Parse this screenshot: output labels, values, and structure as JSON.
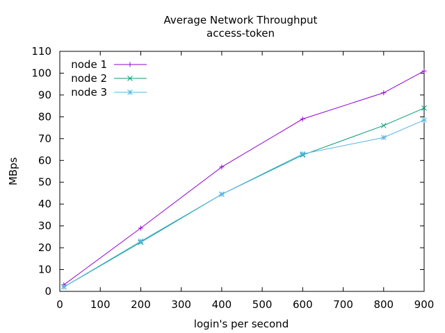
{
  "chart_data": {
    "type": "line",
    "title": "Average Network Throughput",
    "subtitle": "access-token",
    "xlabel": "login's per second",
    "ylabel": "MBps",
    "xlim": [
      0,
      900
    ],
    "ylim": [
      0,
      110
    ],
    "xticks": [
      0,
      100,
      200,
      300,
      400,
      500,
      600,
      700,
      800,
      900
    ],
    "yticks": [
      0,
      10,
      20,
      30,
      40,
      50,
      60,
      70,
      80,
      90,
      100,
      110
    ],
    "grid": false,
    "legend_position": "top-left",
    "series": [
      {
        "name": "node 1",
        "color": "#9400d3",
        "marker": "plus",
        "x": [
          10,
          200,
          400,
          600,
          800,
          900
        ],
        "y": [
          3,
          29,
          57,
          79,
          91,
          101
        ]
      },
      {
        "name": "node 2",
        "color": "#009e73",
        "marker": "cross",
        "x": [
          10,
          200,
          400,
          600,
          800,
          900
        ],
        "y": [
          2,
          22.5,
          44.5,
          62.5,
          76,
          84
        ]
      },
      {
        "name": "node 3",
        "color": "#56b4e9",
        "marker": "star",
        "x": [
          10,
          200,
          400,
          600,
          800,
          900
        ],
        "y": [
          2,
          23,
          44.5,
          63,
          70.5,
          78.5
        ]
      }
    ]
  }
}
